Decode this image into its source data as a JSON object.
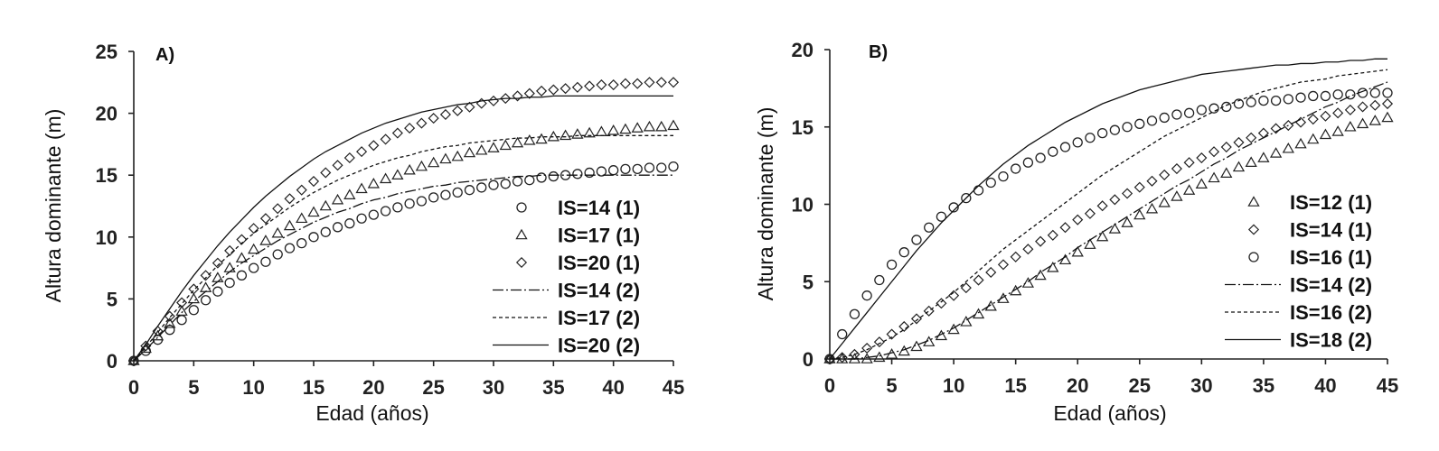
{
  "chart_data": [
    {
      "type": "line",
      "title": "A)",
      "xlabel": "Edad (años)",
      "ylabel": "Altura dominante (m)",
      "xlim": [
        0,
        45
      ],
      "ylim": [
        0,
        25
      ],
      "xticks": [
        "0",
        "5",
        "10",
        "15",
        "20",
        "25",
        "30",
        "35",
        "40",
        "45"
      ],
      "yticks": [
        "0",
        "5",
        "10",
        "15",
        "20",
        "25"
      ],
      "x": [
        0,
        1,
        2,
        3,
        4,
        5,
        6,
        7,
        8,
        9,
        10,
        11,
        12,
        13,
        14,
        15,
        16,
        17,
        18,
        19,
        20,
        21,
        22,
        23,
        24,
        25,
        26,
        27,
        28,
        29,
        30,
        31,
        32,
        33,
        34,
        35,
        36,
        37,
        38,
        39,
        40,
        41,
        42,
        43,
        44,
        45
      ],
      "legend_position": "bottom-right",
      "series": [
        {
          "name": "IS=14 (1)",
          "marker": "circle",
          "values": [
            0,
            0.8,
            1.7,
            2.5,
            3.3,
            4.1,
            4.9,
            5.6,
            6.3,
            6.9,
            7.5,
            8.0,
            8.6,
            9.1,
            9.5,
            10.0,
            10.4,
            10.8,
            11.1,
            11.5,
            11.8,
            12.1,
            12.4,
            12.7,
            12.9,
            13.2,
            13.4,
            13.6,
            13.8,
            14.0,
            14.2,
            14.3,
            14.5,
            14.6,
            14.8,
            14.9,
            15.0,
            15.1,
            15.2,
            15.3,
            15.4,
            15.5,
            15.5,
            15.6,
            15.6,
            15.7
          ]
        },
        {
          "name": "IS=17 (1)",
          "marker": "triangle",
          "values": [
            0,
            1.0,
            2.0,
            3.0,
            4.0,
            5.0,
            5.9,
            6.7,
            7.5,
            8.3,
            9.0,
            9.7,
            10.3,
            10.9,
            11.5,
            12.0,
            12.5,
            13.0,
            13.4,
            13.9,
            14.3,
            14.7,
            15.0,
            15.4,
            15.7,
            16.0,
            16.3,
            16.5,
            16.8,
            17.0,
            17.2,
            17.4,
            17.6,
            17.8,
            17.9,
            18.1,
            18.2,
            18.3,
            18.4,
            18.5,
            18.6,
            18.7,
            18.8,
            18.9,
            18.9,
            19.0
          ]
        },
        {
          "name": "IS=20 (1)",
          "marker": "diamond",
          "values": [
            0,
            1.2,
            2.4,
            3.6,
            4.7,
            5.8,
            6.9,
            7.9,
            8.9,
            9.8,
            10.7,
            11.5,
            12.3,
            13.1,
            13.8,
            14.5,
            15.2,
            15.8,
            16.4,
            16.9,
            17.4,
            17.9,
            18.4,
            18.8,
            19.2,
            19.6,
            19.9,
            20.2,
            20.5,
            20.8,
            21.0,
            21.2,
            21.4,
            21.6,
            21.8,
            21.9,
            22.0,
            22.1,
            22.2,
            22.3,
            22.3,
            22.4,
            22.4,
            22.5,
            22.5,
            22.5
          ]
        },
        {
          "name": "IS=14 (2)",
          "line": "dashdot",
          "values": [
            0,
            0.9,
            1.9,
            2.9,
            3.9,
            4.8,
            5.6,
            6.4,
            7.2,
            7.9,
            8.5,
            9.1,
            9.7,
            10.2,
            10.7,
            11.2,
            11.6,
            12.0,
            12.3,
            12.7,
            13.0,
            13.2,
            13.5,
            13.7,
            13.9,
            14.1,
            14.2,
            14.4,
            14.5,
            14.6,
            14.7,
            14.8,
            14.9,
            14.9,
            15.0,
            15.0,
            15.0,
            15.0,
            15.0,
            15.0,
            15.0,
            15.0,
            15.0,
            15.0,
            15.0,
            15.0
          ]
        },
        {
          "name": "IS=17 (2)",
          "line": "dashed",
          "values": [
            0,
            1.1,
            2.3,
            3.5,
            4.6,
            5.7,
            6.7,
            7.7,
            8.6,
            9.5,
            10.3,
            11.0,
            11.7,
            12.4,
            13.0,
            13.6,
            14.1,
            14.6,
            15.0,
            15.4,
            15.8,
            16.1,
            16.4,
            16.6,
            16.9,
            17.1,
            17.3,
            17.4,
            17.6,
            17.7,
            17.8,
            17.9,
            18.0,
            18.0,
            18.1,
            18.1,
            18.1,
            18.2,
            18.2,
            18.2,
            18.2,
            18.2,
            18.2,
            18.2,
            18.2,
            18.2
          ]
        },
        {
          "name": "IS=20 (2)",
          "line": "solid",
          "values": [
            0,
            1.3,
            2.8,
            4.2,
            5.6,
            6.9,
            8.1,
            9.3,
            10.4,
            11.4,
            12.4,
            13.3,
            14.1,
            14.9,
            15.6,
            16.3,
            16.9,
            17.4,
            17.9,
            18.4,
            18.8,
            19.2,
            19.5,
            19.8,
            20.1,
            20.3,
            20.5,
            20.7,
            20.8,
            21.0,
            21.1,
            21.2,
            21.2,
            21.3,
            21.3,
            21.4,
            21.4,
            21.4,
            21.4,
            21.4,
            21.4,
            21.4,
            21.4,
            21.4,
            21.4,
            21.4
          ]
        }
      ]
    },
    {
      "type": "line",
      "title": "B)",
      "xlabel": "Edad (años)",
      "ylabel": "Altura dominante (m)",
      "xlim": [
        0,
        45
      ],
      "ylim": [
        0,
        20
      ],
      "xticks": [
        "0",
        "5",
        "10",
        "15",
        "20",
        "25",
        "30",
        "35",
        "40",
        "45"
      ],
      "yticks": [
        "0",
        "5",
        "10",
        "15",
        "20"
      ],
      "x": [
        0,
        1,
        2,
        3,
        4,
        5,
        6,
        7,
        8,
        9,
        10,
        11,
        12,
        13,
        14,
        15,
        16,
        17,
        18,
        19,
        20,
        21,
        22,
        23,
        24,
        25,
        26,
        27,
        28,
        29,
        30,
        31,
        32,
        33,
        34,
        35,
        36,
        37,
        38,
        39,
        40,
        41,
        42,
        43,
        44,
        45
      ],
      "legend_position": "bottom-right",
      "series": [
        {
          "name": "IS=12 (1)",
          "marker": "triangle",
          "values": [
            0,
            0,
            0,
            0,
            0.1,
            0.3,
            0.5,
            0.8,
            1.1,
            1.5,
            1.9,
            2.4,
            2.9,
            3.4,
            3.9,
            4.4,
            4.9,
            5.4,
            5.9,
            6.4,
            6.9,
            7.4,
            7.9,
            8.4,
            8.8,
            9.3,
            9.7,
            10.1,
            10.5,
            10.9,
            11.3,
            11.7,
            12.0,
            12.4,
            12.7,
            13.0,
            13.3,
            13.6,
            13.9,
            14.2,
            14.5,
            14.7,
            15.0,
            15.2,
            15.4,
            15.6
          ]
        },
        {
          "name": "IS=14 (1)",
          "marker": "diamond",
          "values": [
            0,
            0.1,
            0.3,
            0.7,
            1.1,
            1.6,
            2.1,
            2.6,
            3.1,
            3.6,
            4.1,
            4.6,
            5.1,
            5.6,
            6.1,
            6.6,
            7.1,
            7.6,
            8.0,
            8.5,
            9.0,
            9.4,
            9.9,
            10.3,
            10.7,
            11.1,
            11.5,
            11.9,
            12.3,
            12.7,
            13.0,
            13.4,
            13.7,
            14.0,
            14.3,
            14.6,
            14.9,
            15.1,
            15.3,
            15.5,
            15.7,
            15.9,
            16.1,
            16.3,
            16.4,
            16.5
          ]
        },
        {
          "name": "IS=16 (1)",
          "marker": "circle",
          "values": [
            0,
            1.6,
            2.9,
            4.1,
            5.1,
            6.1,
            6.9,
            7.7,
            8.5,
            9.2,
            9.8,
            10.4,
            10.9,
            11.4,
            11.8,
            12.3,
            12.7,
            13.0,
            13.4,
            13.7,
            14.0,
            14.3,
            14.6,
            14.8,
            15.0,
            15.2,
            15.4,
            15.6,
            15.8,
            15.9,
            16.1,
            16.2,
            16.3,
            16.5,
            16.6,
            16.7,
            16.7,
            16.8,
            16.9,
            17.0,
            17.0,
            17.1,
            17.1,
            17.2,
            17.2,
            17.2
          ]
        },
        {
          "name": "IS=14 (2)",
          "line": "dashdot",
          "values": [
            0,
            0,
            0,
            0.1,
            0.2,
            0.4,
            0.6,
            0.9,
            1.2,
            1.6,
            2.0,
            2.5,
            3.0,
            3.5,
            4.0,
            4.5,
            5.0,
            5.6,
            6.1,
            6.6,
            7.2,
            7.7,
            8.2,
            8.7,
            9.2,
            9.7,
            10.2,
            10.7,
            11.2,
            11.6,
            12.1,
            12.6,
            13.0,
            13.5,
            13.9,
            14.3,
            14.7,
            15.1,
            15.5,
            15.9,
            16.3,
            16.6,
            17.0,
            17.3,
            17.6,
            17.9
          ]
        },
        {
          "name": "IS=16 (2)",
          "line": "dashed",
          "values": [
            0,
            0.1,
            0.3,
            0.6,
            1.0,
            1.4,
            1.9,
            2.5,
            3.1,
            3.7,
            4.3,
            5.0,
            5.7,
            6.4,
            7.1,
            7.7,
            8.3,
            8.9,
            9.5,
            10.1,
            10.7,
            11.3,
            11.9,
            12.4,
            12.9,
            13.4,
            13.9,
            14.4,
            14.8,
            15.2,
            15.6,
            16.0,
            16.4,
            16.7,
            17.0,
            17.3,
            17.5,
            17.7,
            17.9,
            18.0,
            18.1,
            18.3,
            18.4,
            18.5,
            18.6,
            18.7
          ]
        },
        {
          "name": "IS=18 (2)",
          "line": "solid",
          "values": [
            0,
            1.0,
            2.0,
            3.0,
            4.0,
            5.0,
            6.0,
            7.0,
            7.9,
            8.8,
            9.6,
            10.4,
            11.2,
            11.9,
            12.6,
            13.2,
            13.8,
            14.3,
            14.8,
            15.3,
            15.7,
            16.1,
            16.5,
            16.8,
            17.1,
            17.4,
            17.6,
            17.8,
            18.0,
            18.2,
            18.4,
            18.5,
            18.6,
            18.7,
            18.8,
            18.9,
            19.0,
            19.0,
            19.1,
            19.1,
            19.2,
            19.2,
            19.3,
            19.3,
            19.4,
            19.4
          ]
        }
      ]
    }
  ]
}
